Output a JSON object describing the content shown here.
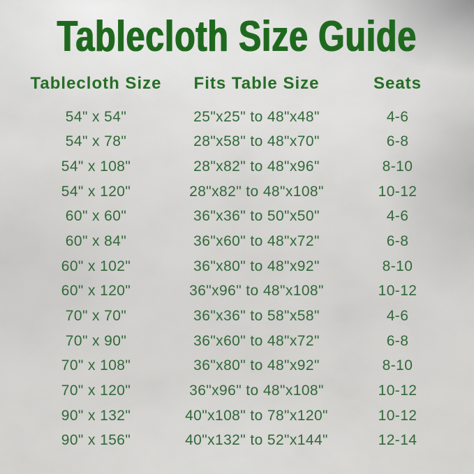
{
  "page": {
    "title": "Tablecloth Size Guide"
  },
  "colors": {
    "title_green": "#1f691f",
    "header_green": "#266d26",
    "data_green": "#31683a",
    "background_silver": "#d4d3d0"
  },
  "chart_data": {
    "type": "table",
    "title": "Tablecloth Size Guide",
    "columns": [
      "Tablecloth Size",
      "Fits Table Size",
      "Seats"
    ],
    "rows": [
      [
        "54\" x 54\"",
        "25\"x25\" to 48\"x48\"",
        "4-6"
      ],
      [
        "54\" x 78\"",
        "28\"x58\" to 48\"x70\"",
        "6-8"
      ],
      [
        "54\" x 108\"",
        "28\"x82\" to 48\"x96\"",
        "8-10"
      ],
      [
        "54\" x 120\"",
        "28\"x82\" to 48\"x108\"",
        "10-12"
      ],
      [
        "60\" x 60\"",
        "36\"x36\" to 50\"x50\"",
        "4-6"
      ],
      [
        "60\" x 84\"",
        "36\"x60\" to 48\"x72\"",
        "6-8"
      ],
      [
        "60\" x 102\"",
        "36\"x80\" to 48\"x92\"",
        "8-10"
      ],
      [
        "60\" x 120\"",
        "36\"x96\" to 48\"x108\"",
        "10-12"
      ],
      [
        "70\" x 70\"",
        "36\"x36\" to 58\"x58\"",
        "4-6"
      ],
      [
        "70\" x 90\"",
        "36\"x60\" to 48\"x72\"",
        "6-8"
      ],
      [
        "70\" x 108\"",
        "36\"x80\" to 48\"x92\"",
        "8-10"
      ],
      [
        "70\" x 120\"",
        "36\"x96\" to 48\"x108\"",
        "10-12"
      ],
      [
        "90\" x 132\"",
        "40\"x108\" to 78\"x120\"",
        "10-12"
      ],
      [
        "90\" x 156\"",
        "40\"x132\" to 52\"x144\"",
        "12-14"
      ]
    ]
  }
}
